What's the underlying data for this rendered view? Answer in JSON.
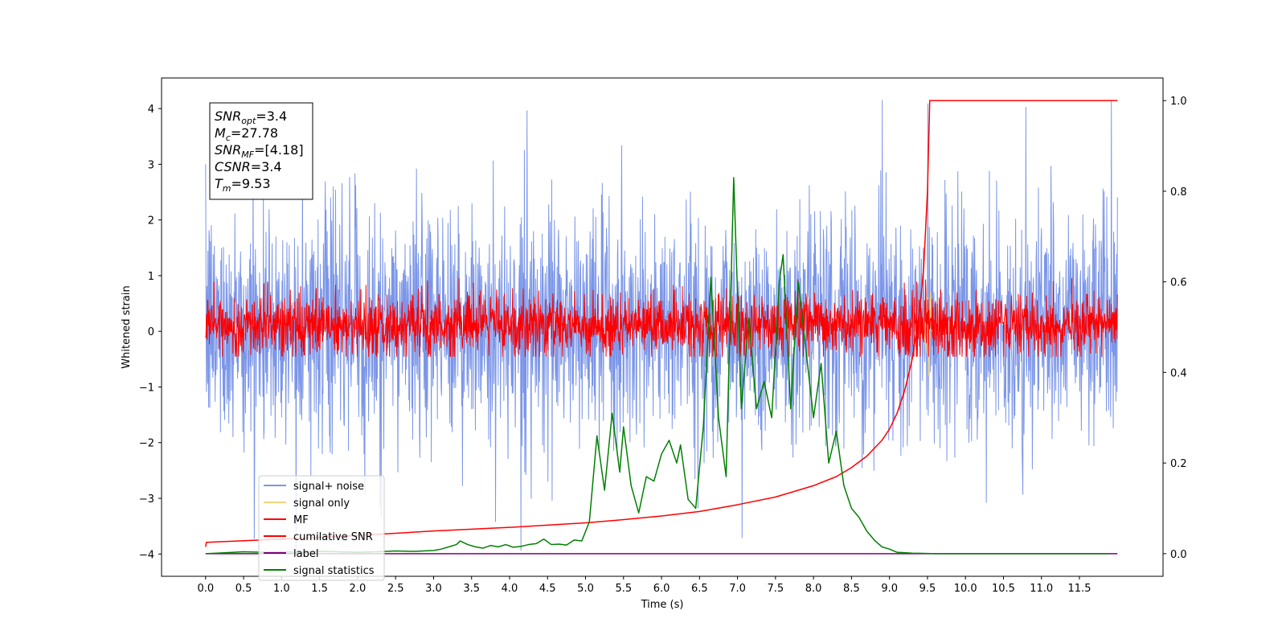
{
  "chart_data": {
    "type": "line",
    "title": "",
    "xlabel": "Time (s)",
    "ylabel": "Whitened strain",
    "y2label": "",
    "xlim": [
      -0.58,
      12.6
    ],
    "ylim": [
      -4.4,
      4.55
    ],
    "y2lim": [
      -0.05,
      1.05
    ],
    "xticks": [
      "0.0",
      "0.5",
      "1.0",
      "1.5",
      "2.0",
      "2.5",
      "3.0",
      "3.5",
      "4.0",
      "4.5",
      "5.0",
      "5.5",
      "6.0",
      "6.5",
      "7.0",
      "7.5",
      "8.0",
      "8.5",
      "9.0",
      "9.5",
      "10.0",
      "10.5",
      "11.0",
      "11.5"
    ],
    "yticks": [
      "4",
      "3",
      "2",
      "1",
      "0",
      "−1",
      "−2",
      "−3",
      "−4"
    ],
    "y2ticks": [
      "1.0",
      "0.8",
      "0.6",
      "0.4",
      "0.2",
      "0.0"
    ],
    "legend_position": "lower-left",
    "legend": [
      {
        "label": "signal+ noise",
        "color": "#7b96e8"
      },
      {
        "label": "signal only",
        "color": "#f5d27a"
      },
      {
        "label": "MF",
        "color": "#ff0000"
      },
      {
        "label": "cumilative SNR",
        "color": "#ff0000"
      },
      {
        "label": "label",
        "color": "#800080"
      },
      {
        "label": "signal statistics",
        "color": "#008000"
      }
    ],
    "series": [
      {
        "name": "signal+ noise",
        "axis": "left",
        "color": "#7b96e8",
        "description": "noise-like band",
        "x_range": [
          0.0,
          12.0
        ],
        "band_typical": [
          -1.8,
          2.0
        ],
        "extremes": [
          -4.0,
          4.15
        ]
      },
      {
        "name": "signal only",
        "axis": "left",
        "color": "#f5d27a",
        "x": [
          9.4,
          9.45,
          9.48,
          9.5,
          9.52,
          9.54,
          9.56,
          9.6
        ],
        "y": [
          0.0,
          0.2,
          -0.4,
          0.6,
          -0.8,
          0.7,
          0.0,
          0.0
        ]
      },
      {
        "name": "MF",
        "axis": "left",
        "color": "#ff0000",
        "description": "noise-like band",
        "x_range": [
          0.0,
          12.0
        ],
        "band_typical": [
          -0.4,
          0.6
        ],
        "extremes": [
          -0.45,
          0.95
        ]
      },
      {
        "name": "cumilative SNR",
        "axis": "right",
        "color": "#ff0000",
        "x": [
          0.0,
          0.01,
          1.0,
          2.0,
          3.0,
          4.0,
          5.0,
          5.5,
          6.0,
          6.5,
          7.0,
          7.5,
          8.0,
          8.3,
          8.5,
          8.7,
          8.9,
          9.0,
          9.1,
          9.2,
          9.3,
          9.4,
          9.45,
          9.5,
          9.53,
          9.6,
          12.0
        ],
        "y": [
          0.015,
          0.025,
          0.032,
          0.04,
          0.05,
          0.058,
          0.068,
          0.075,
          0.083,
          0.093,
          0.108,
          0.125,
          0.15,
          0.17,
          0.19,
          0.215,
          0.25,
          0.275,
          0.31,
          0.36,
          0.43,
          0.54,
          0.63,
          0.8,
          1.0,
          1.0,
          1.0
        ]
      },
      {
        "name": "label",
        "axis": "right",
        "color": "#800080",
        "x": [
          0.0,
          12.0
        ],
        "y": [
          0.0,
          0.0
        ]
      },
      {
        "name": "signal statistics",
        "axis": "right",
        "color": "#008000",
        "x": [
          0.0,
          0.25,
          0.5,
          0.75,
          1.0,
          1.25,
          1.5,
          1.75,
          2.0,
          2.25,
          2.5,
          2.75,
          3.0,
          3.1,
          3.2,
          3.3,
          3.35,
          3.45,
          3.55,
          3.65,
          3.75,
          3.85,
          3.95,
          4.05,
          4.15,
          4.25,
          4.35,
          4.45,
          4.55,
          4.65,
          4.75,
          4.85,
          4.95,
          5.05,
          5.15,
          5.25,
          5.35,
          5.45,
          5.5,
          5.6,
          5.7,
          5.8,
          5.9,
          6.0,
          6.1,
          6.2,
          6.25,
          6.35,
          6.45,
          6.55,
          6.65,
          6.75,
          6.85,
          6.95,
          7.05,
          7.15,
          7.25,
          7.35,
          7.45,
          7.55,
          7.6,
          7.7,
          7.8,
          7.9,
          8.0,
          8.1,
          8.2,
          8.3,
          8.4,
          8.5,
          8.6,
          8.7,
          8.8,
          8.9,
          9.0,
          9.1,
          9.3,
          9.6,
          10.0,
          11.0,
          11.9
        ],
        "y": [
          0.0,
          0.002,
          0.004,
          0.003,
          0.004,
          0.003,
          0.005,
          0.004,
          0.003,
          0.004,
          0.006,
          0.005,
          0.007,
          0.01,
          0.015,
          0.02,
          0.028,
          0.02,
          0.015,
          0.012,
          0.018,
          0.015,
          0.02,
          0.014,
          0.016,
          0.02,
          0.022,
          0.032,
          0.02,
          0.021,
          0.019,
          0.03,
          0.028,
          0.07,
          0.26,
          0.14,
          0.31,
          0.18,
          0.28,
          0.15,
          0.09,
          0.17,
          0.16,
          0.22,
          0.25,
          0.2,
          0.24,
          0.12,
          0.1,
          0.28,
          0.61,
          0.3,
          0.17,
          0.83,
          0.32,
          0.52,
          0.32,
          0.38,
          0.3,
          0.6,
          0.66,
          0.32,
          0.6,
          0.45,
          0.3,
          0.42,
          0.2,
          0.27,
          0.15,
          0.1,
          0.08,
          0.05,
          0.03,
          0.015,
          0.01,
          0.003,
          0.001,
          0.0,
          0.0,
          0.0,
          0.0
        ]
      }
    ],
    "annotation": {
      "lines": [
        {
          "sym": "SNR",
          "sub": "opt",
          "rest": "=3.4"
        },
        {
          "sym": "M",
          "sub": "c",
          "rest": "=27.78"
        },
        {
          "sym": "SNR",
          "sub": "MF",
          "rest": "=[4.18]"
        },
        {
          "sym": "CSNR",
          "sub": "",
          "rest": "=3.4"
        },
        {
          "sym": "T",
          "sub": "m",
          "rest": "=9.53"
        }
      ]
    }
  }
}
